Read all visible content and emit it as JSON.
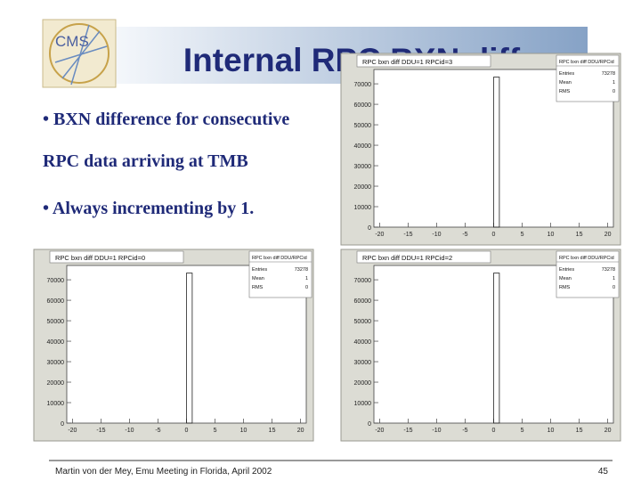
{
  "slide": {
    "logo": "CMS",
    "title": "Internal RPC BXN diff",
    "bullets": [
      "• BXN difference for consecutive",
      "RPC data arriving at TMB",
      "• Always incrementing by 1."
    ],
    "footer": {
      "left": "Martin von der Mey, Emu Meeting in Florida, April 2002",
      "page": "45"
    }
  },
  "plots": [
    {
      "title": "RPC bxn diff DDU=1 RPCid=3",
      "stats_title": "RPC bxn diff DDU/RPCid",
      "stats": [
        {
          "label": "Entries",
          "value": "73278"
        },
        {
          "label": "Mean",
          "value": "1"
        },
        {
          "label": "RMS",
          "value": "0"
        }
      ],
      "xlim": [
        -21,
        21
      ],
      "xticks": [
        -20,
        -15,
        -10,
        -5,
        0,
        5,
        10,
        15,
        20
      ],
      "ylim": [
        0,
        77000
      ],
      "yticks": [
        0,
        10000,
        20000,
        30000,
        40000,
        50000,
        60000,
        70000
      ],
      "bins": [
        0,
        1
      ],
      "counts": [
        73278
      ]
    },
    {
      "title": "RPC bxn diff DDU=1 RPCid=0",
      "stats_title": "RPC bxn diff DDU/RPCid",
      "stats": [
        {
          "label": "Entries",
          "value": "73278"
        },
        {
          "label": "Mean",
          "value": "1"
        },
        {
          "label": "RMS",
          "value": "0"
        }
      ],
      "xlim": [
        -21,
        21
      ],
      "xticks": [
        -20,
        -15,
        -10,
        -5,
        0,
        5,
        10,
        15,
        20
      ],
      "ylim": [
        0,
        77000
      ],
      "yticks": [
        0,
        10000,
        20000,
        30000,
        40000,
        50000,
        60000,
        70000
      ],
      "bins": [
        0,
        1
      ],
      "counts": [
        73278
      ]
    },
    {
      "title": "RPC bxn diff DDU=1 RPCid=2",
      "stats_title": "RPC bxn diff DDU/RPCid",
      "stats": [
        {
          "label": "Entries",
          "value": "73278"
        },
        {
          "label": "Mean",
          "value": "1"
        },
        {
          "label": "RMS",
          "value": "0"
        }
      ],
      "xlim": [
        -21,
        21
      ],
      "xticks": [
        -20,
        -15,
        -10,
        -5,
        0,
        5,
        10,
        15,
        20
      ],
      "ylim": [
        0,
        77000
      ],
      "yticks": [
        0,
        10000,
        20000,
        30000,
        40000,
        50000,
        60000,
        70000
      ],
      "bins": [
        0,
        1
      ],
      "counts": [
        73278
      ]
    }
  ]
}
